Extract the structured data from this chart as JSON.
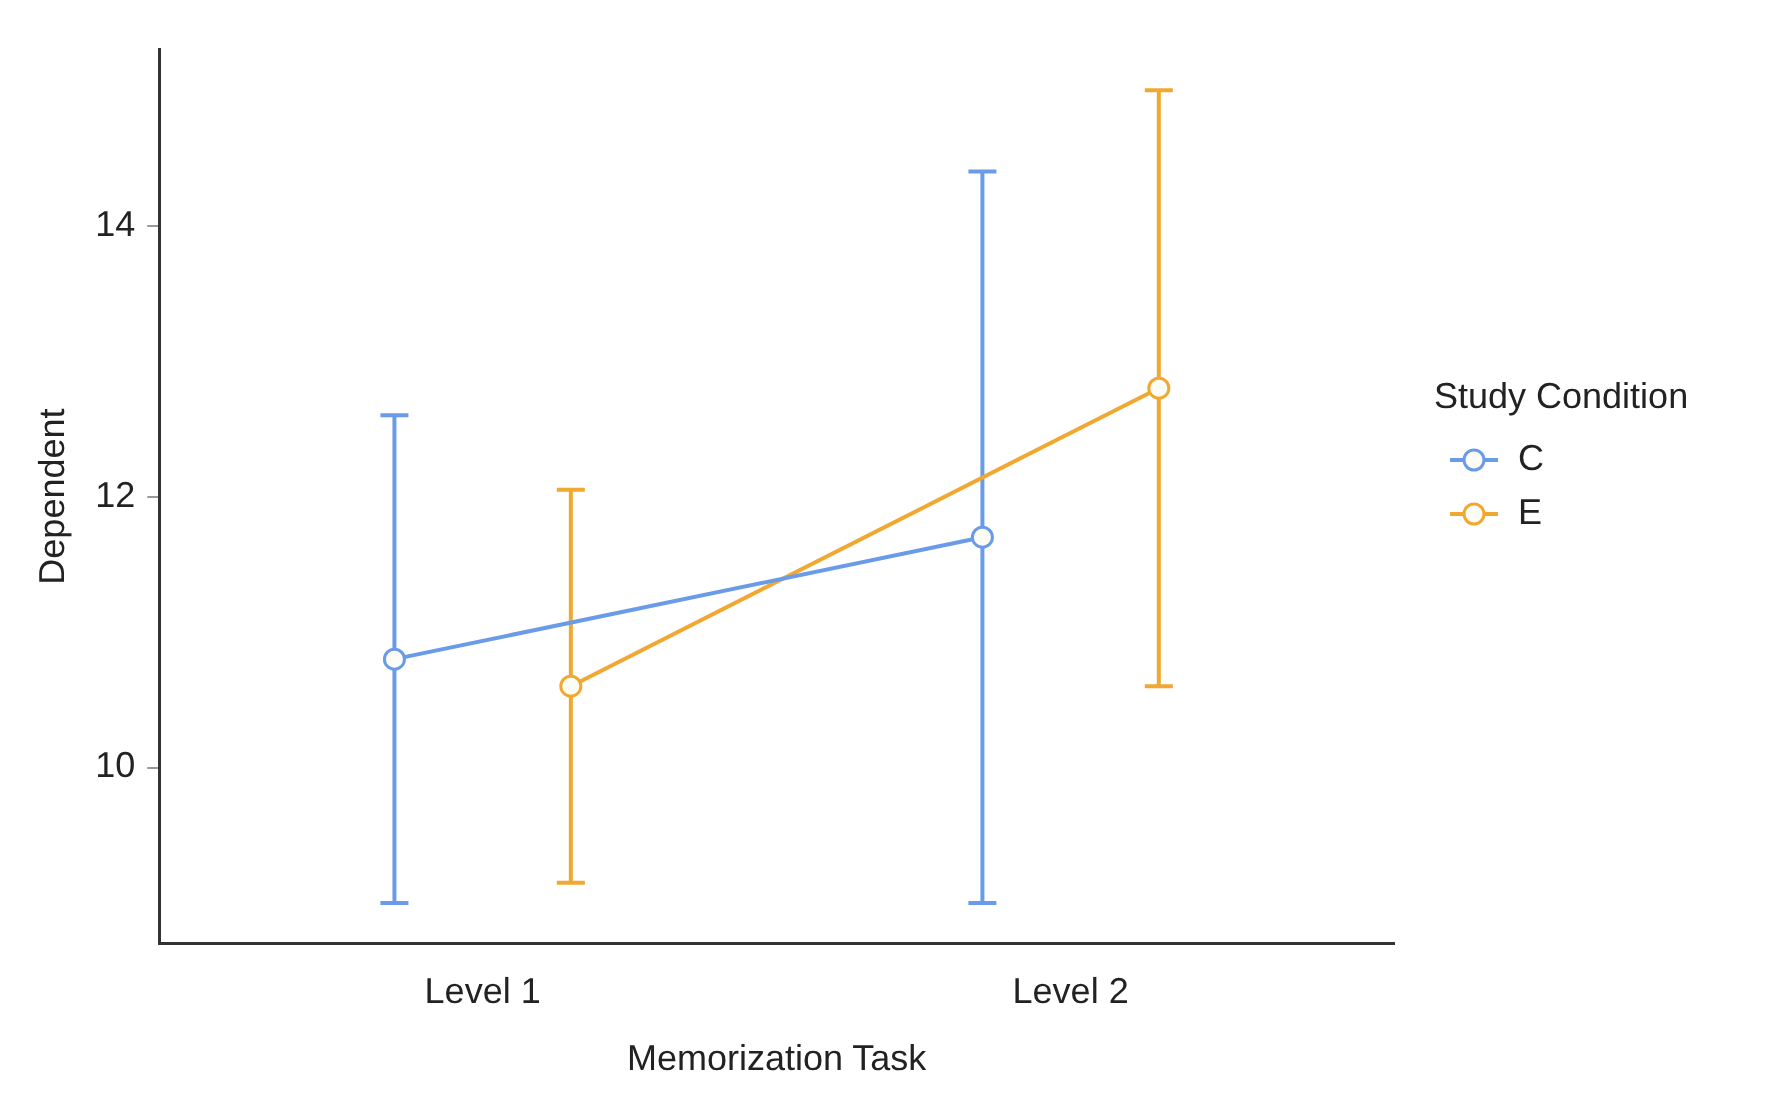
{
  "chart_data": {
    "type": "line",
    "categories": [
      "Level 1",
      "Level 2"
    ],
    "xlabel": "Memorization Task",
    "ylabel": "Dependent",
    "legend_title": "Study Condition",
    "legend": "right",
    "grid": false,
    "marker": "circle",
    "line_style": "solid",
    "ylim": [
      8.7,
      15.3
    ],
    "yticks": [
      10,
      12,
      14
    ],
    "series": [
      {
        "name": "C",
        "color": "#6a9be8",
        "values": [
          10.8,
          11.7
        ],
        "errors": [
          [
            9.0,
            12.6
          ],
          [
            9.0,
            14.4
          ]
        ]
      },
      {
        "name": "E",
        "color": "#f0a830",
        "values": [
          10.6,
          12.8
        ],
        "errors": [
          [
            9.15,
            12.05
          ],
          [
            10.6,
            15.0
          ]
        ]
      }
    ]
  }
}
